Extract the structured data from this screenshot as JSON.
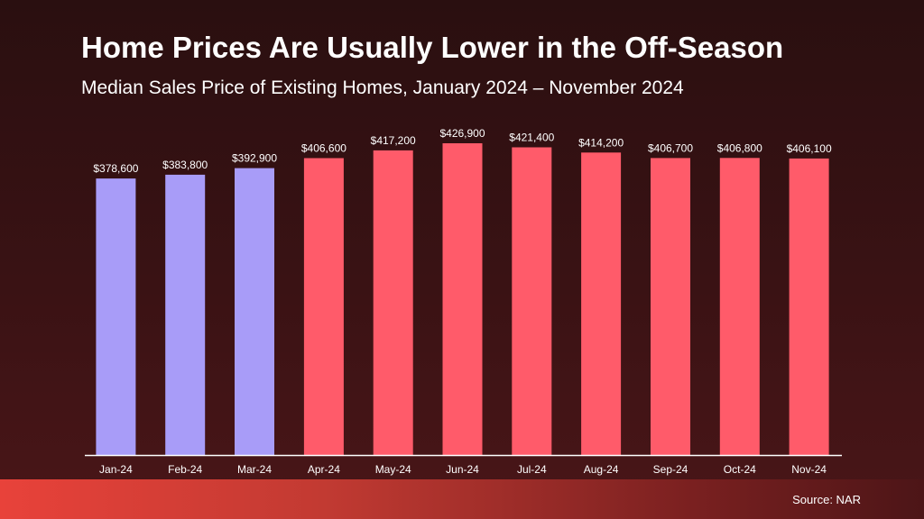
{
  "title": "Home Prices Are Usually Lower in the Off-Season",
  "subtitle": "Median Sales Price of Existing Homes, January 2024 – November 2024",
  "source": "Source: NAR",
  "colors": {
    "off_season": "#a89cf8",
    "peak_season": "#ff5b6a",
    "axis": "#ffffff"
  },
  "chart_data": {
    "type": "bar",
    "categories": [
      "Jan-24",
      "Feb-24",
      "Mar-24",
      "Apr-24",
      "May-24",
      "Jun-24",
      "Jul-24",
      "Aug-24",
      "Sep-24",
      "Oct-24",
      "Nov-24"
    ],
    "values": [
      378600,
      383800,
      392900,
      406600,
      417200,
      426900,
      421400,
      414200,
      406700,
      406800,
      406100
    ],
    "data_labels": [
      "$378,600",
      "$383,800",
      "$392,900",
      "$406,600",
      "$417,200",
      "$426,900",
      "$421,400",
      "$414,200",
      "$406,700",
      "$406,800",
      "$406,100"
    ],
    "bar_color_groups": [
      "off_season",
      "off_season",
      "off_season",
      "peak_season",
      "peak_season",
      "peak_season",
      "peak_season",
      "peak_season",
      "peak_season",
      "peak_season",
      "peak_season"
    ],
    "title": "Home Prices Are Usually Lower in the Off-Season",
    "subtitle": "Median Sales Price of Existing Homes, January 2024 – November 2024",
    "xlabel": "",
    "ylabel": "",
    "y_axis_visible": false,
    "grid": false,
    "legend": "none"
  }
}
